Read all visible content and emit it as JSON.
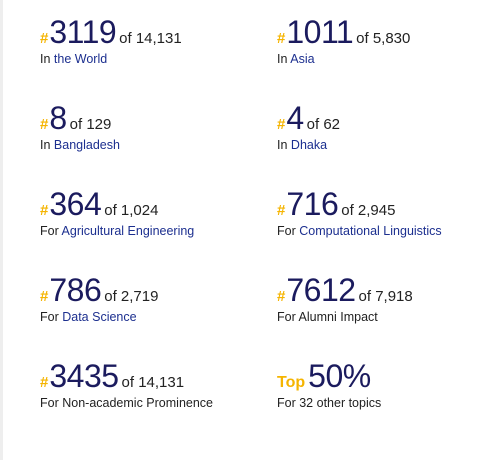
{
  "rankings": [
    {
      "prefix": "#",
      "rank": "3119",
      "of": "of 14,131",
      "scope_prefix": "In",
      "scope_label": "the World",
      "scope_is_link": true
    },
    {
      "prefix": "#",
      "rank": "1011",
      "of": "of 5,830",
      "scope_prefix": "In",
      "scope_label": "Asia",
      "scope_is_link": true
    },
    {
      "prefix": "#",
      "rank": "8",
      "of": "of 129",
      "scope_prefix": "In",
      "scope_label": "Bangladesh",
      "scope_is_link": true
    },
    {
      "prefix": "#",
      "rank": "4",
      "of": "of 62",
      "scope_prefix": "In",
      "scope_label": "Dhaka",
      "scope_is_link": true
    },
    {
      "prefix": "#",
      "rank": "364",
      "of": "of 1,024",
      "scope_prefix": "For",
      "scope_label": "Agricultural Engineering",
      "scope_is_link": true
    },
    {
      "prefix": "#",
      "rank": "716",
      "of": "of 2,945",
      "scope_prefix": "For",
      "scope_label": "Computational Linguistics",
      "scope_is_link": true
    },
    {
      "prefix": "#",
      "rank": "786",
      "of": "of 2,719",
      "scope_prefix": "For",
      "scope_label": "Data Science",
      "scope_is_link": true
    },
    {
      "prefix": "#",
      "rank": "7612",
      "of": "of 7,918",
      "scope_prefix": "For",
      "scope_label": "Alumni Impact",
      "scope_is_link": false
    },
    {
      "prefix": "#",
      "rank": "3435",
      "of": "of 14,131",
      "scope_prefix": "For",
      "scope_label": "Non-academic Prominence",
      "scope_is_link": false
    },
    {
      "prefix": "Top",
      "rank": "50%",
      "of": "",
      "scope_prefix": "For",
      "scope_label": "32 other topics",
      "scope_is_link": false
    }
  ],
  "colors": {
    "accent": "#f5b400",
    "rank_text": "#1b1b5e",
    "link": "#1c2f8f",
    "body_text": "#222222"
  }
}
